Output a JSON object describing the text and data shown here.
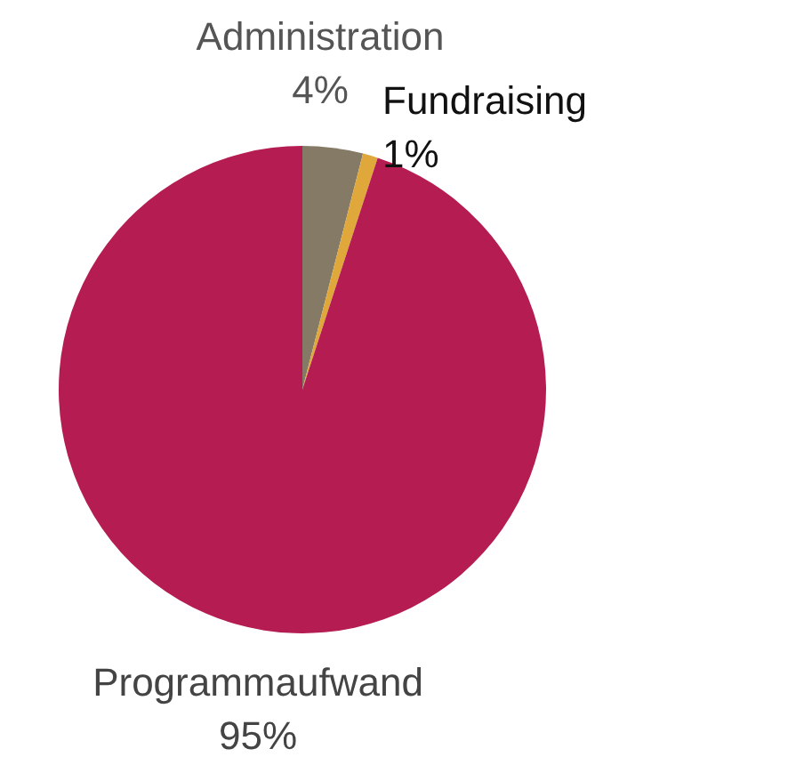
{
  "chart_data": {
    "type": "pie",
    "categories": [
      "Administration",
      "Fundraising",
      "Programmaufwand"
    ],
    "values": [
      4,
      1,
      95
    ],
    "colors": [
      "#857a66",
      "#e0a83a",
      "#b41c52"
    ],
    "value_labels": [
      "4%",
      "1%",
      "95%"
    ]
  }
}
